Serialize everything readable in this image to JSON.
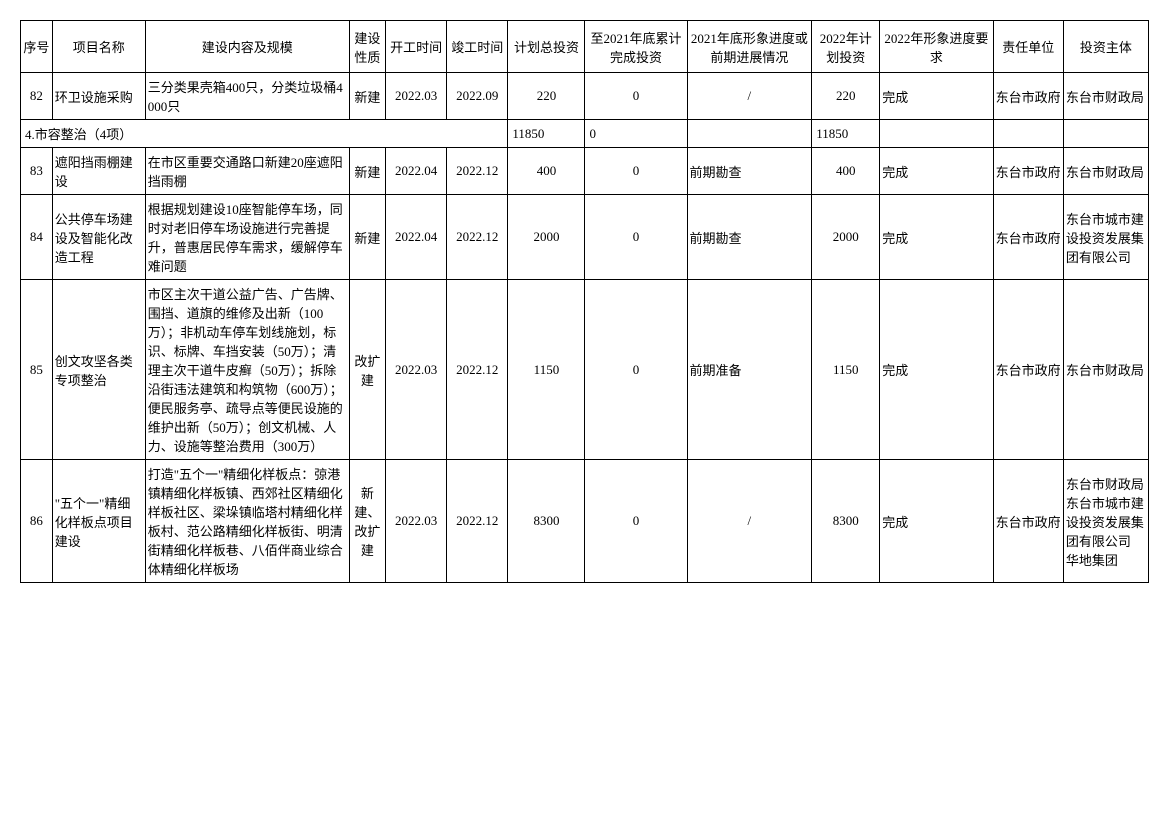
{
  "headers": {
    "seq": "序号",
    "name": "项目名称",
    "content": "建设内容及规模",
    "nature": "建设性质",
    "start": "开工时间",
    "end": "竣工时间",
    "total": "计划总投资",
    "done": "至2021年底累计完成投资",
    "progress2021": "2021年底形象进度或前期进展情况",
    "plan2022": "2022年计划投资",
    "req2022": "2022年形象进度要求",
    "unit": "责任单位",
    "owner": "投资主体"
  },
  "rows": [
    {
      "seq": "82",
      "name": "环卫设施采购",
      "content": "三分类果壳箱400只，分类垃圾桶4000只",
      "nature": "新建",
      "start": "2022.03",
      "end": "2022.09",
      "total": "220",
      "done": "0",
      "progress2021": "/",
      "plan2022": "220",
      "req2022": "完成",
      "unit": "东台市政府",
      "owner": "东台市财政局"
    },
    {
      "section": true,
      "label": "4.市容整治（4项）",
      "total": "11850",
      "done": "0",
      "plan2022": "11850"
    },
    {
      "seq": "83",
      "name": "遮阳挡雨棚建设",
      "content": "在市区重要交通路口新建20座遮阳挡雨棚",
      "nature": "新建",
      "start": "2022.04",
      "end": "2022.12",
      "total": "400",
      "done": "0",
      "progress2021": "前期勘查",
      "plan2022": "400",
      "req2022": "完成",
      "unit": "东台市政府",
      "owner": "东台市财政局"
    },
    {
      "seq": "84",
      "name": "公共停车场建设及智能化改造工程",
      "content": "根据规划建设10座智能停车场，同时对老旧停车场设施进行完善提升，普惠居民停车需求，缓解停车难问题",
      "nature": "新建",
      "start": "2022.04",
      "end": "2022.12",
      "total": "2000",
      "done": "0",
      "progress2021": "前期勘查",
      "plan2022": "2000",
      "req2022": "完成",
      "unit": "东台市政府",
      "owner": "东台市城市建设投资发展集团有限公司"
    },
    {
      "seq": "85",
      "name": "创文攻坚各类专项整治",
      "content": "市区主次干道公益广告、广告牌、围挡、道旗的维修及出新（100万）；非机动车停车划线施划，标识、标牌、车挡安装（50万）；清理主次干道牛皮癣（50万）；拆除沿街违法建筑和构筑物（600万）；便民服务亭、疏导点等便民设施的维护出新（50万）；创文机械、人力、设施等整治费用（300万）",
      "nature": "改扩建",
      "start": "2022.03",
      "end": "2022.12",
      "total": "1150",
      "done": "0",
      "progress2021": "前期准备",
      "plan2022": "1150",
      "req2022": "完成",
      "unit": "东台市政府",
      "owner": "东台市财政局"
    },
    {
      "seq": "86",
      "name": "\"五个一\"精细化样板点项目建设",
      "content": "打造\"五个一\"精细化样板点：弶港镇精细化样板镇、西郊社区精细化样板社区、梁垛镇临塔村精细化样板村、范公路精细化样板街、明清街精细化样板巷、八佰伴商业综合体精细化样板场",
      "nature": "新建、改扩建",
      "start": "2022.03",
      "end": "2022.12",
      "total": "8300",
      "done": "0",
      "progress2021": "/",
      "plan2022": "8300",
      "req2022": "完成",
      "unit": "东台市政府",
      "owner": "东台市财政局\n东台市城市建设投资发展集团有限公司\n华地集团"
    }
  ]
}
